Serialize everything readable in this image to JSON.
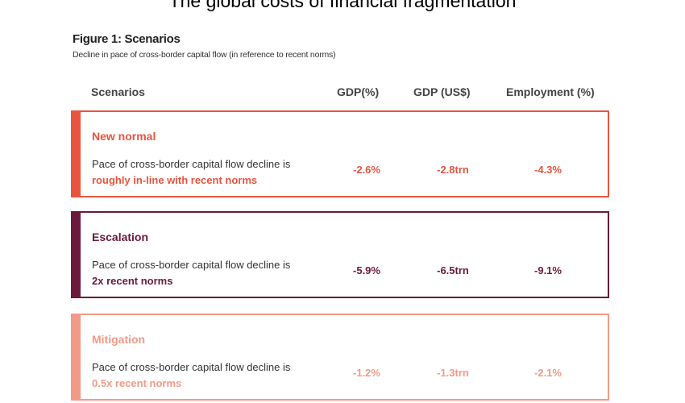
{
  "title": "The global costs of financial fragmentation",
  "figure": {
    "title": "Figure 1: Scenarios",
    "subtitle": "Decline in pace of cross-border capital flow (in reference to recent norms)"
  },
  "headers": [
    "Scenarios",
    "GDP(%)",
    "GDP (US$)",
    "Employment (%)"
  ],
  "rows": [
    {
      "name": "New normal",
      "desc": "Pace of cross-border capital flow decline is ",
      "highlight": "roughly in-line with recent norms",
      "gdp_pct": "-2.6%",
      "gdp_usd": "-2.8trn",
      "employment": "-4.3%",
      "color": "#e8553f"
    },
    {
      "name": "Escalation",
      "desc": "Pace of cross-border capital flow decline is ",
      "highlight": "2x recent norms",
      "gdp_pct": "-5.9%",
      "gdp_usd": "-6.5trn",
      "employment": "-9.1%",
      "color": "#6b1a3d"
    },
    {
      "name": "Mitigation",
      "desc": "Pace of cross-border capital flow decline is ",
      "highlight": "0.5x recent norms",
      "gdp_pct": "-1.2%",
      "gdp_usd": "-1.3trn",
      "employment": "-2.1%",
      "color": "#f29a88"
    }
  ]
}
